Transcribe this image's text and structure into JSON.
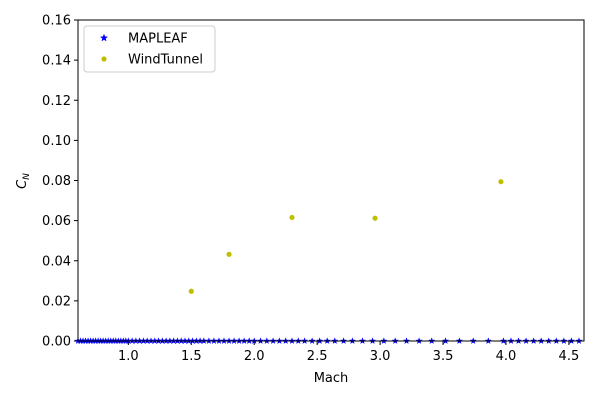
{
  "chart_data": {
    "type": "scatter",
    "xlabel": "Mach",
    "ylabel_base": "C",
    "ylabel_sub": "N",
    "xlim": [
      0.6,
      4.62
    ],
    "ylim": [
      0.0,
      0.16
    ],
    "xticks": [
      1.0,
      1.5,
      2.0,
      2.5,
      3.0,
      3.5,
      4.0,
      4.5
    ],
    "xtick_labels": [
      "1.0",
      "1.5",
      "2.0",
      "2.5",
      "3.0",
      "3.5",
      "4.0",
      "4.5"
    ],
    "yticks": [
      0.0,
      0.02,
      0.04,
      0.06,
      0.08,
      0.1,
      0.12,
      0.14,
      0.16
    ],
    "ytick_labels": [
      "0.00",
      "0.02",
      "0.04",
      "0.06",
      "0.08",
      "0.10",
      "0.12",
      "0.14",
      "0.16"
    ],
    "grid": false,
    "legend_position": "top-left",
    "series": [
      {
        "name": "MAPLEAF",
        "marker": "star",
        "color": "#0000ff",
        "x": [
          0.6,
          0.62,
          0.64,
          0.66,
          0.68,
          0.7,
          0.72,
          0.74,
          0.76,
          0.78,
          0.8,
          0.82,
          0.84,
          0.86,
          0.88,
          0.9,
          0.92,
          0.94,
          0.96,
          0.98,
          1.0,
          1.03,
          1.06,
          1.09,
          1.12,
          1.15,
          1.18,
          1.21,
          1.24,
          1.27,
          1.3,
          1.33,
          1.36,
          1.39,
          1.42,
          1.45,
          1.48,
          1.51,
          1.54,
          1.57,
          1.6,
          1.64,
          1.68,
          1.72,
          1.76,
          1.8,
          1.84,
          1.88,
          1.92,
          1.96,
          2.0,
          2.05,
          2.1,
          2.15,
          2.2,
          2.25,
          2.3,
          2.35,
          2.4,
          2.46,
          2.52,
          2.58,
          2.64,
          2.71,
          2.78,
          2.86,
          2.94,
          3.03,
          3.12,
          3.21,
          3.31,
          3.41,
          3.52,
          3.63,
          3.74,
          3.86,
          3.98,
          4.04,
          4.1,
          4.16,
          4.22,
          4.28,
          4.34,
          4.4,
          4.46,
          4.52,
          4.58
        ],
        "y": [
          0,
          0,
          0,
          0,
          0,
          0,
          0,
          0,
          0,
          0,
          0,
          0,
          0,
          0,
          0,
          0,
          0,
          0,
          0,
          0,
          0,
          0,
          0,
          0,
          0,
          0,
          0,
          0,
          0,
          0,
          0,
          0,
          0,
          0,
          0,
          0,
          0,
          0,
          0,
          0,
          0,
          0,
          0,
          0,
          0,
          0,
          0,
          0,
          0,
          0,
          0,
          0,
          0,
          0,
          0,
          0,
          0,
          0,
          0,
          0,
          0,
          0,
          0,
          0,
          0,
          0,
          0,
          0,
          0,
          0,
          0,
          0,
          0,
          0,
          0,
          0,
          0,
          0,
          0,
          0,
          0,
          0,
          0,
          0,
          0,
          0,
          0
        ]
      },
      {
        "name": "WindTunnel",
        "marker": "dot",
        "color": "#bfbf00",
        "x": [
          1.5,
          1.8,
          2.3,
          2.96,
          3.96
        ],
        "y": [
          0.0248,
          0.0432,
          0.0616,
          0.0612,
          0.0794
        ]
      }
    ]
  }
}
